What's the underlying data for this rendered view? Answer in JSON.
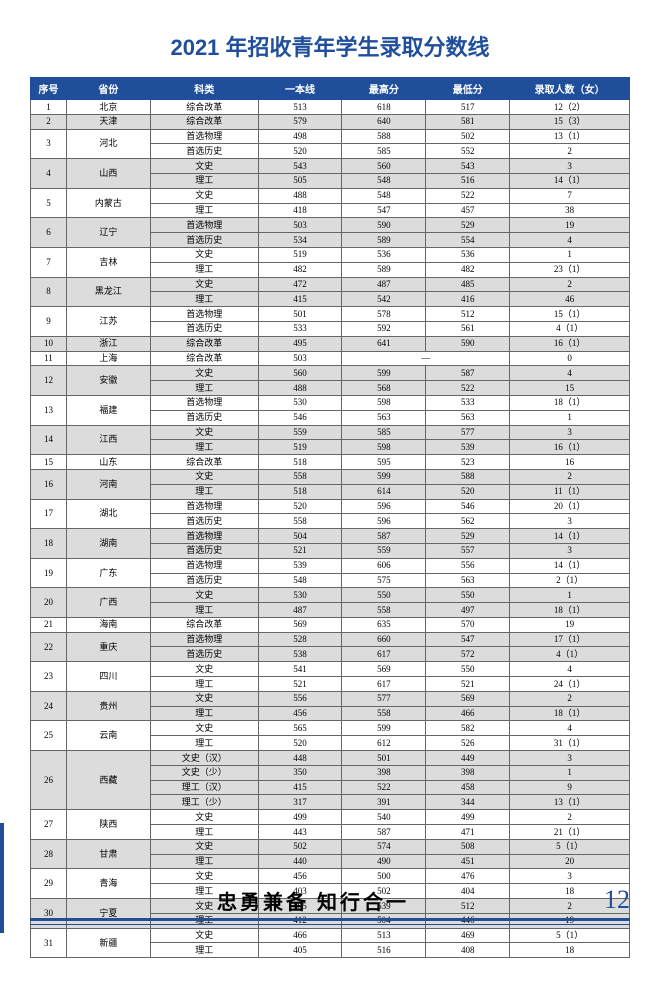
{
  "title": "2021 年招收青年学生录取分数线",
  "headers": [
    "序号",
    "省份",
    "科类",
    "一本线",
    "最高分",
    "最低分",
    "录取人数（女）"
  ],
  "footer": {
    "motto": "忠勇兼备 知行合一",
    "page": "12"
  },
  "groups": [
    {
      "seq": "1",
      "prov": "北京",
      "shade": false,
      "rows": [
        {
          "sub": "综合改革",
          "line": "513",
          "max": "618",
          "min": "517",
          "cnt": "12（2）"
        }
      ]
    },
    {
      "seq": "2",
      "prov": "天津",
      "shade": true,
      "rows": [
        {
          "sub": "综合改革",
          "line": "579",
          "max": "640",
          "min": "581",
          "cnt": "15（3）"
        }
      ]
    },
    {
      "seq": "3",
      "prov": "河北",
      "shade": false,
      "rows": [
        {
          "sub": "首选物理",
          "line": "498",
          "max": "588",
          "min": "502",
          "cnt": "13（1）"
        },
        {
          "sub": "首选历史",
          "line": "520",
          "max": "585",
          "min": "552",
          "cnt": "2"
        }
      ]
    },
    {
      "seq": "4",
      "prov": "山西",
      "shade": true,
      "rows": [
        {
          "sub": "文史",
          "line": "543",
          "max": "560",
          "min": "543",
          "cnt": "3"
        },
        {
          "sub": "理工",
          "line": "505",
          "max": "548",
          "min": "516",
          "cnt": "14（1）"
        }
      ]
    },
    {
      "seq": "5",
      "prov": "内蒙古",
      "shade": false,
      "rows": [
        {
          "sub": "文史",
          "line": "488",
          "max": "548",
          "min": "522",
          "cnt": "7"
        },
        {
          "sub": "理工",
          "line": "418",
          "max": "547",
          "min": "457",
          "cnt": "38"
        }
      ]
    },
    {
      "seq": "6",
      "prov": "辽宁",
      "shade": true,
      "rows": [
        {
          "sub": "首选物理",
          "line": "503",
          "max": "590",
          "min": "529",
          "cnt": "19"
        },
        {
          "sub": "首选历史",
          "line": "534",
          "max": "589",
          "min": "554",
          "cnt": "4"
        }
      ]
    },
    {
      "seq": "7",
      "prov": "吉林",
      "shade": false,
      "rows": [
        {
          "sub": "文史",
          "line": "519",
          "max": "536",
          "min": "536",
          "cnt": "1"
        },
        {
          "sub": "理工",
          "line": "482",
          "max": "589",
          "min": "482",
          "cnt": "23（1）"
        }
      ]
    },
    {
      "seq": "8",
      "prov": "黑龙江",
      "shade": true,
      "rows": [
        {
          "sub": "文史",
          "line": "472",
          "max": "487",
          "min": "485",
          "cnt": "2"
        },
        {
          "sub": "理工",
          "line": "415",
          "max": "542",
          "min": "416",
          "cnt": "46"
        }
      ]
    },
    {
      "seq": "9",
      "prov": "江苏",
      "shade": false,
      "rows": [
        {
          "sub": "首选物理",
          "line": "501",
          "max": "578",
          "min": "512",
          "cnt": "15（1）"
        },
        {
          "sub": "首选历史",
          "line": "533",
          "max": "592",
          "min": "561",
          "cnt": "4（1）"
        }
      ]
    },
    {
      "seq": "10",
      "prov": "浙江",
      "shade": true,
      "rows": [
        {
          "sub": "综合改革",
          "line": "495",
          "max": "641",
          "min": "590",
          "cnt": "16（1）"
        }
      ]
    },
    {
      "seq": "11",
      "prov": "上海",
      "shade": false,
      "rows": [
        {
          "sub": "综合改革",
          "line": "503",
          "max": "—",
          "min": "",
          "cnt": "0",
          "dash": true
        }
      ]
    },
    {
      "seq": "12",
      "prov": "安徽",
      "shade": true,
      "rows": [
        {
          "sub": "文史",
          "line": "560",
          "max": "599",
          "min": "587",
          "cnt": "4"
        },
        {
          "sub": "理工",
          "line": "488",
          "max": "568",
          "min": "522",
          "cnt": "15"
        }
      ]
    },
    {
      "seq": "13",
      "prov": "福建",
      "shade": false,
      "rows": [
        {
          "sub": "首选物理",
          "line": "530",
          "max": "598",
          "min": "533",
          "cnt": "18（1）"
        },
        {
          "sub": "首选历史",
          "line": "546",
          "max": "563",
          "min": "563",
          "cnt": "1"
        }
      ]
    },
    {
      "seq": "14",
      "prov": "江西",
      "shade": true,
      "rows": [
        {
          "sub": "文史",
          "line": "559",
          "max": "585",
          "min": "577",
          "cnt": "3"
        },
        {
          "sub": "理工",
          "line": "519",
          "max": "598",
          "min": "539",
          "cnt": "16（1）"
        }
      ]
    },
    {
      "seq": "15",
      "prov": "山东",
      "shade": false,
      "rows": [
        {
          "sub": "综合改革",
          "line": "518",
          "max": "595",
          "min": "523",
          "cnt": "16"
        }
      ]
    },
    {
      "seq": "16",
      "prov": "河南",
      "shade": true,
      "rows": [
        {
          "sub": "文史",
          "line": "558",
          "max": "599",
          "min": "588",
          "cnt": "2"
        },
        {
          "sub": "理工",
          "line": "518",
          "max": "614",
          "min": "520",
          "cnt": "11（1）"
        }
      ]
    },
    {
      "seq": "17",
      "prov": "湖北",
      "shade": false,
      "rows": [
        {
          "sub": "首选物理",
          "line": "520",
          "max": "596",
          "min": "546",
          "cnt": "20（1）"
        },
        {
          "sub": "首选历史",
          "line": "558",
          "max": "596",
          "min": "562",
          "cnt": "3"
        }
      ]
    },
    {
      "seq": "18",
      "prov": "湖南",
      "shade": true,
      "rows": [
        {
          "sub": "首选物理",
          "line": "504",
          "max": "587",
          "min": "529",
          "cnt": "14（1）"
        },
        {
          "sub": "首选历史",
          "line": "521",
          "max": "559",
          "min": "557",
          "cnt": "3"
        }
      ]
    },
    {
      "seq": "19",
      "prov": "广东",
      "shade": false,
      "rows": [
        {
          "sub": "首选物理",
          "line": "539",
          "max": "606",
          "min": "556",
          "cnt": "14（1）"
        },
        {
          "sub": "首选历史",
          "line": "548",
          "max": "575",
          "min": "563",
          "cnt": "2（1）"
        }
      ]
    },
    {
      "seq": "20",
      "prov": "广西",
      "shade": true,
      "rows": [
        {
          "sub": "文史",
          "line": "530",
          "max": "550",
          "min": "550",
          "cnt": "1"
        },
        {
          "sub": "理工",
          "line": "487",
          "max": "558",
          "min": "497",
          "cnt": "18（1）"
        }
      ]
    },
    {
      "seq": "21",
      "prov": "海南",
      "shade": false,
      "rows": [
        {
          "sub": "综合改革",
          "line": "569",
          "max": "635",
          "min": "570",
          "cnt": "19"
        }
      ]
    },
    {
      "seq": "22",
      "prov": "重庆",
      "shade": true,
      "rows": [
        {
          "sub": "首选物理",
          "line": "528",
          "max": "660",
          "min": "547",
          "cnt": "17（1）"
        },
        {
          "sub": "首选历史",
          "line": "538",
          "max": "617",
          "min": "572",
          "cnt": "4（1）"
        }
      ]
    },
    {
      "seq": "23",
      "prov": "四川",
      "shade": false,
      "rows": [
        {
          "sub": "文史",
          "line": "541",
          "max": "569",
          "min": "550",
          "cnt": "4"
        },
        {
          "sub": "理工",
          "line": "521",
          "max": "617",
          "min": "521",
          "cnt": "24（1）"
        }
      ]
    },
    {
      "seq": "24",
      "prov": "贵州",
      "shade": true,
      "rows": [
        {
          "sub": "文史",
          "line": "556",
          "max": "577",
          "min": "569",
          "cnt": "2"
        },
        {
          "sub": "理工",
          "line": "456",
          "max": "558",
          "min": "466",
          "cnt": "18（1）"
        }
      ]
    },
    {
      "seq": "25",
      "prov": "云南",
      "shade": false,
      "rows": [
        {
          "sub": "文史",
          "line": "565",
          "max": "599",
          "min": "582",
          "cnt": "4"
        },
        {
          "sub": "理工",
          "line": "520",
          "max": "612",
          "min": "526",
          "cnt": "31（1）"
        }
      ]
    },
    {
      "seq": "26",
      "prov": "西藏",
      "shade": true,
      "rows": [
        {
          "sub": "文史（汉）",
          "line": "448",
          "max": "501",
          "min": "449",
          "cnt": "3"
        },
        {
          "sub": "文史（少）",
          "line": "350",
          "max": "398",
          "min": "398",
          "cnt": "1"
        },
        {
          "sub": "理工（汉）",
          "line": "415",
          "max": "522",
          "min": "458",
          "cnt": "9"
        },
        {
          "sub": "理工（少）",
          "line": "317",
          "max": "391",
          "min": "344",
          "cnt": "13（1）"
        }
      ]
    },
    {
      "seq": "27",
      "prov": "陕西",
      "shade": false,
      "rows": [
        {
          "sub": "文史",
          "line": "499",
          "max": "540",
          "min": "499",
          "cnt": "2"
        },
        {
          "sub": "理工",
          "line": "443",
          "max": "587",
          "min": "471",
          "cnt": "21（1）"
        }
      ]
    },
    {
      "seq": "28",
      "prov": "甘肃",
      "shade": true,
      "rows": [
        {
          "sub": "文史",
          "line": "502",
          "max": "574",
          "min": "508",
          "cnt": "5（1）"
        },
        {
          "sub": "理工",
          "line": "440",
          "max": "490",
          "min": "451",
          "cnt": "20"
        }
      ]
    },
    {
      "seq": "29",
      "prov": "青海",
      "shade": false,
      "rows": [
        {
          "sub": "文史",
          "line": "456",
          "max": "500",
          "min": "476",
          "cnt": "3"
        },
        {
          "sub": "理工",
          "line": "403",
          "max": "502",
          "min": "404",
          "cnt": "18"
        }
      ]
    },
    {
      "seq": "30",
      "prov": "宁夏",
      "shade": true,
      "rows": [
        {
          "sub": "文史",
          "line": "505",
          "max": "539",
          "min": "512",
          "cnt": "2"
        },
        {
          "sub": "理工",
          "line": "412",
          "max": "504",
          "min": "446",
          "cnt": "19"
        }
      ]
    },
    {
      "seq": "31",
      "prov": "新疆",
      "shade": false,
      "rows": [
        {
          "sub": "文史",
          "line": "466",
          "max": "513",
          "min": "469",
          "cnt": "5（1）"
        },
        {
          "sub": "理工",
          "line": "405",
          "max": "516",
          "min": "408",
          "cnt": "18"
        }
      ]
    }
  ]
}
